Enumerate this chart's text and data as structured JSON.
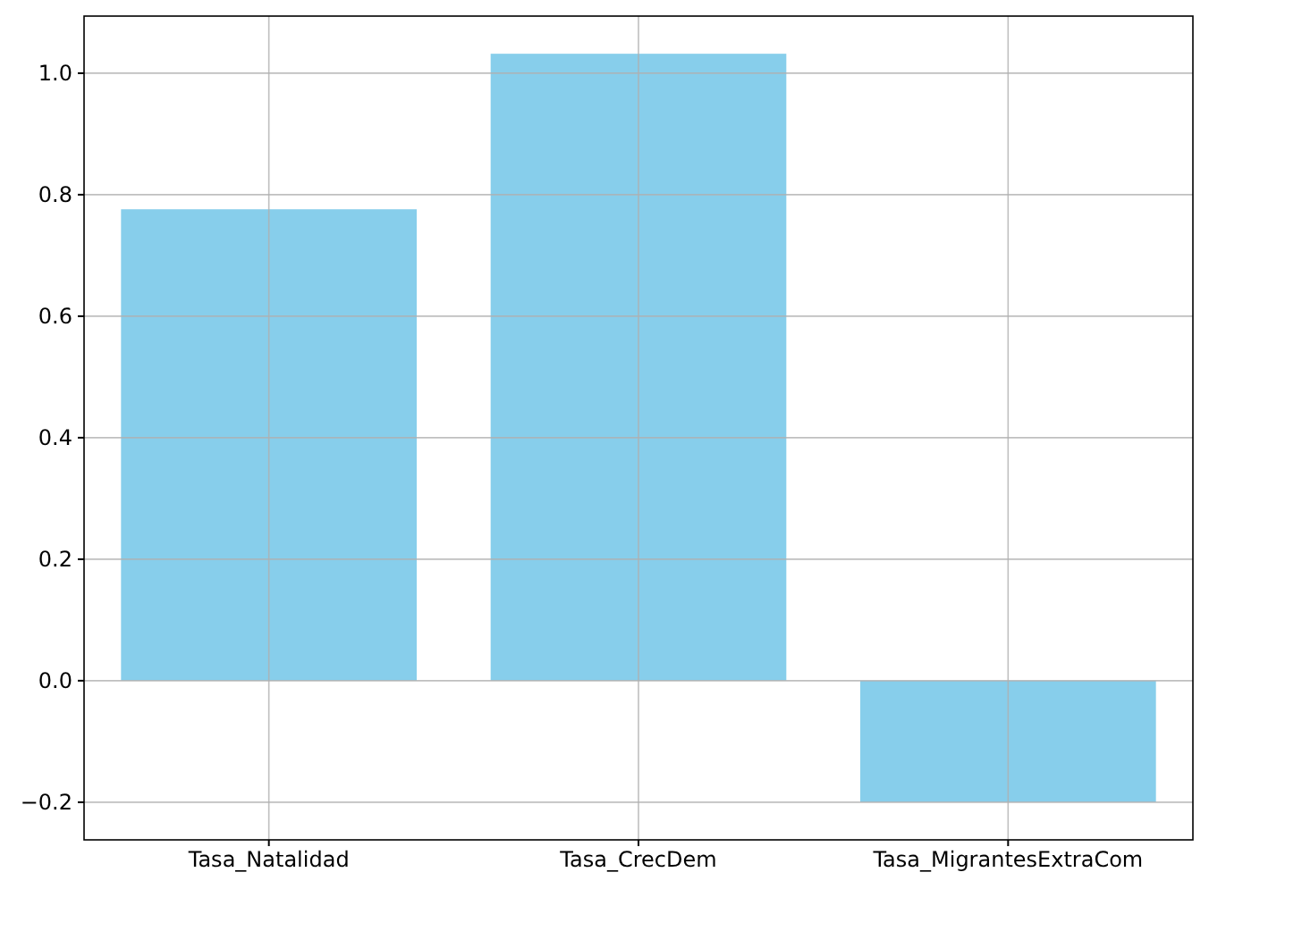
{
  "chart_data": {
    "type": "bar",
    "categories": [
      "Tasa_Natalidad",
      "Tasa_CrecDem",
      "Tasa_MigrantesExtraCom"
    ],
    "values": [
      0.776,
      1.032,
      -0.2
    ],
    "color": "#87ceeb",
    "ylim": [
      -0.262,
      1.094
    ],
    "yticks": [
      {
        "value": -0.2,
        "label": "−0.2"
      },
      {
        "value": 0,
        "label": "0.0"
      },
      {
        "value": 0.2,
        "label": "0.2"
      },
      {
        "value": 0.4,
        "label": "0.4"
      },
      {
        "value": 0.6,
        "label": "0.6"
      },
      {
        "value": 0.8,
        "label": "0.8"
      },
      {
        "value": 1,
        "label": "1.0"
      }
    ],
    "grid": true
  }
}
